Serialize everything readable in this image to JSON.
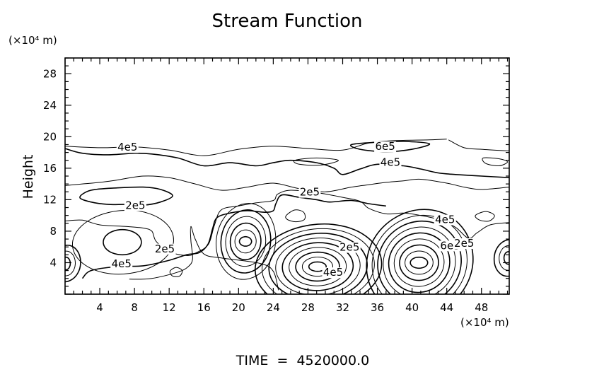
{
  "chart_data": {
    "type": "contour",
    "title": "Stream Function",
    "ylabel": "Height",
    "y_unit": "(×10⁴ m)",
    "x_unit": "(×10⁴ m)",
    "xlim": [
      0,
      51.2
    ],
    "ylim": [
      0,
      30
    ],
    "x_ticks": [
      4,
      8,
      12,
      16,
      20,
      24,
      28,
      32,
      36,
      40,
      44,
      48
    ],
    "y_ticks": [
      4,
      8,
      12,
      16,
      20,
      24,
      28
    ],
    "footer": "TIME  =  4520000.0",
    "contour_labels": [
      {
        "text": "4e5",
        "x": 7.2,
        "y": 18.4
      },
      {
        "text": "6e5",
        "x": 36.9,
        "y": 18.5
      },
      {
        "text": "4e5",
        "x": 37.5,
        "y": 16.5
      },
      {
        "text": "2e5",
        "x": 28.2,
        "y": 12.7
      },
      {
        "text": "2e5",
        "x": 8.1,
        "y": 11.0
      },
      {
        "text": "4e5",
        "x": 43.8,
        "y": 9.2
      },
      {
        "text": "6e5",
        "x": 44.4,
        "y": 5.9
      },
      {
        "text": "2e5",
        "x": 46.0,
        "y": 6.2
      },
      {
        "text": "2e5",
        "x": 32.8,
        "y": 5.7
      },
      {
        "text": "4e5",
        "x": 30.9,
        "y": 2.5
      },
      {
        "text": "4e5",
        "x": 6.5,
        "y": 3.6
      },
      {
        "text": "2e5",
        "x": 11.5,
        "y": 5.5
      }
    ],
    "vortices": [
      {
        "x": 29.1,
        "y": 3.5,
        "rings": 9,
        "rx": [
          1.0,
          7.0
        ],
        "ry": [
          0.6,
          5.6
        ]
      },
      {
        "x": 40.8,
        "y": 4.0,
        "rings": 9,
        "rx": [
          1.0,
          5.9
        ],
        "ry": [
          0.7,
          7.0
        ]
      },
      {
        "x": 20.8,
        "y": 6.7,
        "rings": 6,
        "rx": [
          0.7,
          3.3
        ],
        "ry": [
          0.6,
          5.0
        ]
      },
      {
        "x": 0.1,
        "y": 3.9,
        "rings": 3,
        "rx": [
          0.5,
          1.6
        ],
        "ry": [
          0.8,
          2.4
        ]
      },
      {
        "x": 51.1,
        "y": 4.6,
        "rings": 3,
        "rx": [
          0.5,
          1.6
        ],
        "ry": [
          0.8,
          2.4
        ]
      },
      {
        "x": 6.6,
        "y": 6.6,
        "rings": 2,
        "rx": [
          2.2,
          5.6
        ],
        "ry": [
          1.6,
          4.2
        ]
      }
    ],
    "contours": [
      {
        "w": 1,
        "closed": false,
        "pts": [
          [
            0,
            18.8
          ],
          [
            4,
            18.6
          ],
          [
            8,
            18.7
          ],
          [
            12,
            18.3
          ],
          [
            16,
            17.6
          ],
          [
            20,
            18.4
          ],
          [
            24,
            18.8
          ],
          [
            28,
            18.5
          ],
          [
            32,
            18.3
          ],
          [
            35,
            19.2
          ],
          [
            38,
            19.5
          ],
          [
            42,
            19.6
          ],
          [
            44,
            19.7
          ]
        ]
      },
      {
        "w": 1,
        "closed": false,
        "pts": [
          [
            44.2,
            19.6
          ],
          [
            46,
            18.6
          ],
          [
            48,
            18.4
          ],
          [
            51.2,
            18.2
          ]
        ]
      },
      {
        "w": 1.6,
        "closed": false,
        "pts": [
          [
            0,
            18.5
          ],
          [
            2,
            17.9
          ],
          [
            5,
            17.7
          ],
          [
            8,
            17.9
          ],
          [
            10,
            17.8
          ],
          [
            13,
            17.3
          ],
          [
            16,
            16.3
          ],
          [
            19,
            16.7
          ],
          [
            22,
            16.3
          ],
          [
            24,
            16.7
          ],
          [
            26,
            17.0
          ],
          [
            29,
            16.7
          ],
          [
            31,
            16.0
          ],
          [
            32,
            15.2
          ],
          [
            34,
            15.9
          ],
          [
            36,
            16.5
          ],
          [
            39,
            16.3
          ],
          [
            41,
            15.9
          ],
          [
            43,
            15.4
          ],
          [
            45,
            15.2
          ],
          [
            48,
            15.0
          ],
          [
            51.2,
            14.8
          ]
        ]
      },
      {
        "w": 1.6,
        "closed": true,
        "pts": [
          [
            33,
            19.0
          ],
          [
            36,
            19.3
          ],
          [
            39,
            19.4
          ],
          [
            42,
            19.1
          ],
          [
            40,
            18.4
          ],
          [
            37,
            18.1
          ],
          [
            34,
            18.4
          ]
        ]
      },
      {
        "w": 1,
        "closed": true,
        "pts": [
          [
            26.5,
            17.0
          ],
          [
            29,
            17.3
          ],
          [
            31.5,
            17.0
          ],
          [
            29.5,
            16.4
          ],
          [
            27,
            16.5
          ]
        ]
      },
      {
        "w": 1,
        "closed": true,
        "pts": [
          [
            48.2,
            17.3
          ],
          [
            50,
            17.2
          ],
          [
            51,
            16.8
          ],
          [
            50,
            16.3
          ],
          [
            48.5,
            16.6
          ]
        ]
      },
      {
        "w": 1,
        "closed": false,
        "pts": [
          [
            0,
            13.8
          ],
          [
            2,
            14.0
          ],
          [
            4,
            14.2
          ],
          [
            6,
            14.5
          ],
          [
            9,
            15.0
          ],
          [
            12,
            14.8
          ],
          [
            15,
            14.0
          ],
          [
            18,
            13.2
          ],
          [
            21,
            13.6
          ],
          [
            24,
            14.1
          ],
          [
            27,
            13.4
          ],
          [
            30,
            13.0
          ],
          [
            33,
            13.6
          ],
          [
            35,
            13.9
          ],
          [
            37,
            14.2
          ],
          [
            39,
            14.4
          ],
          [
            41,
            14.6
          ],
          [
            44,
            14.1
          ],
          [
            46,
            13.6
          ],
          [
            48,
            13.3
          ],
          [
            51.2,
            13.6
          ]
        ]
      },
      {
        "w": 1.6,
        "closed": true,
        "pts": [
          [
            1.7,
            12.3
          ],
          [
            3,
            13.2
          ],
          [
            6,
            13.5
          ],
          [
            9,
            13.6
          ],
          [
            11,
            13.3
          ],
          [
            12.4,
            12.5
          ],
          [
            11,
            11.7
          ],
          [
            9,
            11.3
          ],
          [
            7,
            11.4
          ],
          [
            5,
            11.4
          ],
          [
            3,
            11.7
          ]
        ]
      },
      {
        "w": 1,
        "closed": false,
        "pts": [
          [
            0,
            9.3
          ],
          [
            2,
            9.4
          ],
          [
            4,
            8.8
          ],
          [
            7,
            8.6
          ],
          [
            9,
            8.4
          ],
          [
            10,
            8.0
          ],
          [
            10.5,
            6.7
          ],
          [
            12,
            5.4
          ],
          [
            14,
            4.9
          ],
          [
            15,
            5.2
          ],
          [
            16.5,
            6.3
          ],
          [
            17.2,
            8.7
          ],
          [
            18,
            10.7
          ],
          [
            20,
            11.2
          ],
          [
            22,
            11.6
          ],
          [
            24,
            11.9
          ],
          [
            24.5,
            12.7
          ],
          [
            26,
            13.2
          ],
          [
            29,
            12.9
          ],
          [
            32,
            12.3
          ],
          [
            34,
            11.8
          ],
          [
            35,
            10.9
          ],
          [
            37,
            10.2
          ],
          [
            39,
            10.3
          ],
          [
            41,
            10.0
          ],
          [
            43,
            9.5
          ],
          [
            45,
            8.5
          ],
          [
            46.5,
            7.1
          ],
          [
            47.5,
            7.8
          ],
          [
            49,
            8.8
          ],
          [
            51.2,
            9.1
          ]
        ]
      },
      {
        "w": 1,
        "closed": false,
        "pts": [
          [
            7.4,
            1.9
          ],
          [
            10,
            2.0
          ],
          [
            13,
            2.8
          ],
          [
            14.2,
            3.5
          ],
          [
            14.7,
            4.5
          ],
          [
            14.5,
            6.8
          ],
          [
            14.5,
            8.6
          ],
          [
            15,
            7.0
          ],
          [
            16,
            5.1
          ],
          [
            18,
            4.6
          ],
          [
            22.5,
            3.9
          ],
          [
            24,
            2.9
          ],
          [
            24.6,
            0.5
          ]
        ]
      },
      {
        "w": 1.6,
        "closed": false,
        "pts": [
          [
            2,
            2.0
          ],
          [
            3,
            3.0
          ],
          [
            6,
            3.5
          ],
          [
            9,
            3.6
          ],
          [
            12,
            4.3
          ],
          [
            14,
            5.0
          ],
          [
            15.5,
            5.3
          ],
          [
            16.5,
            6.4
          ],
          [
            17,
            8.3
          ],
          [
            17.5,
            9.7
          ],
          [
            19,
            10.3
          ],
          [
            21,
            10.6
          ],
          [
            23,
            10.4
          ],
          [
            24,
            10.6
          ],
          [
            24.3,
            11.5
          ],
          [
            25,
            12.6
          ],
          [
            27,
            12.3
          ],
          [
            29,
            12.0
          ],
          [
            30.5,
            11.7
          ],
          [
            33,
            11.9
          ],
          [
            35,
            11.5
          ],
          [
            37,
            11.2
          ]
        ]
      },
      {
        "w": 1,
        "closed": true,
        "pts": [
          [
            25.5,
            10.0
          ],
          [
            26.5,
            10.7
          ],
          [
            27.5,
            10.4
          ],
          [
            27.6,
            9.5
          ],
          [
            26.6,
            9.2
          ],
          [
            25.6,
            9.5
          ]
        ]
      },
      {
        "w": 1,
        "closed": true,
        "pts": [
          [
            12.1,
            2.9
          ],
          [
            12.8,
            3.4
          ],
          [
            13.5,
            3.0
          ],
          [
            13.2,
            2.3
          ],
          [
            12.4,
            2.3
          ]
        ]
      },
      {
        "w": 1,
        "closed": true,
        "pts": [
          [
            47.3,
            10.0
          ],
          [
            48.5,
            10.5
          ],
          [
            49.5,
            10.0
          ],
          [
            48.9,
            9.3
          ],
          [
            47.8,
            9.4
          ]
        ]
      }
    ]
  }
}
